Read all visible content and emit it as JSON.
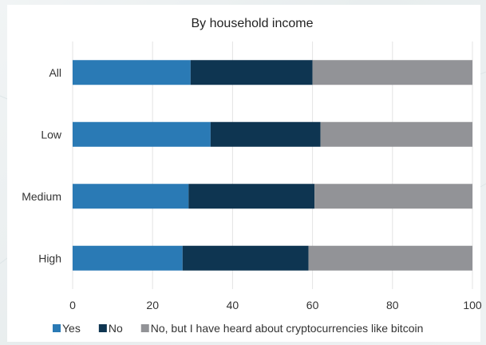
{
  "colors": {
    "yes": "#2A7AB5",
    "no": "#0E3551",
    "heard": "#929397",
    "grid": "#E3E3E3",
    "axis": "#BDBDBD"
  },
  "chart_data": {
    "type": "bar",
    "orientation": "horizontal",
    "stacked": true,
    "title": "By household income",
    "xlabel": "",
    "ylabel": "",
    "xlim": [
      0,
      100
    ],
    "x_ticks": [
      0,
      20,
      40,
      60,
      80,
      100
    ],
    "grid": true,
    "legend_position": "bottom",
    "categories": [
      "All",
      "Low",
      "Medium",
      "High"
    ],
    "series": [
      {
        "name": "Yes",
        "color_key": "yes",
        "values": [
          29.5,
          34.5,
          29,
          27.5
        ]
      },
      {
        "name": "No",
        "color_key": "no",
        "values": [
          30.5,
          27.5,
          31.5,
          31.5
        ]
      },
      {
        "name": "No, but I have heard about cryptocurrencies like bitcoin",
        "color_key": "heard",
        "values": [
          40,
          38,
          39.5,
          41
        ]
      }
    ]
  }
}
